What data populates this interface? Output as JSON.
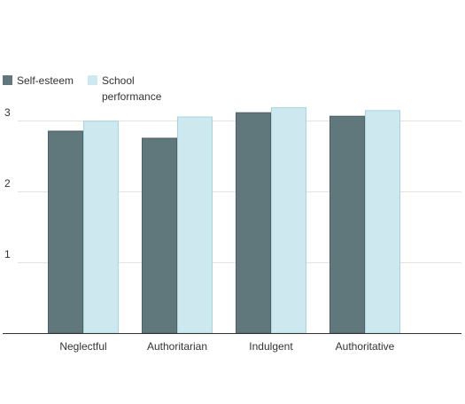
{
  "chart_data": {
    "type": "bar",
    "title": "",
    "xlabel": "",
    "ylabel": "",
    "categories": [
      "Neglectful",
      "Authoritarian",
      "Indulgent",
      "Authoritative"
    ],
    "series": [
      {
        "name": "Self-esteem",
        "color": "#60777b",
        "values": [
          2.85,
          2.75,
          3.11,
          3.06
        ]
      },
      {
        "name": "School performance",
        "name_lines": [
          "School",
          "performance"
        ],
        "color": "#cde9ef",
        "values": [
          2.99,
          3.05,
          3.18,
          3.14
        ]
      }
    ],
    "ylim": [
      0,
      3
    ],
    "yticks": [
      1,
      2,
      3
    ],
    "grid": true,
    "legend_position": "top-left"
  }
}
